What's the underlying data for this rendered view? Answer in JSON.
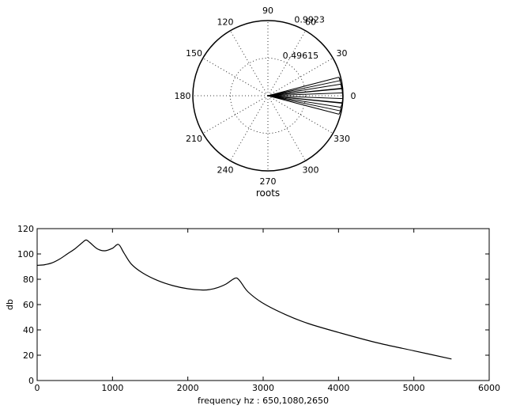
{
  "chart_data": [
    {
      "type": "polar",
      "title": "",
      "xlabel": "roots",
      "rmax": 0.9923,
      "radial_tick_labels": [
        "0.49615",
        "0.9923"
      ],
      "radial_tick_values": [
        0.49615,
        0.9923
      ],
      "angle_tick_labels": [
        "0",
        "30",
        "60",
        "90",
        "120",
        "150",
        "180",
        "210",
        "240",
        "270",
        "300",
        "330"
      ],
      "angle_tick_values": [
        0,
        30,
        60,
        90,
        120,
        150,
        180,
        210,
        240,
        270,
        300,
        330
      ],
      "grid": true,
      "series": [
        {
          "theta_deg": [
            11.8,
            14.6,
            5.4,
            9.0,
            2.2,
            5.8,
            -2.2,
            -5.8,
            -5.4,
            -9.0,
            -11.8,
            -14.6
          ],
          "r": [
            0.98,
            0.97,
            0.99,
            0.975,
            0.99,
            0.985,
            0.99,
            0.985,
            0.99,
            0.975,
            0.98,
            0.97
          ]
        }
      ]
    },
    {
      "type": "line",
      "title": "",
      "xlabel": "frequency hz : 650,1080,2650",
      "ylabel": "db",
      "xlim": [
        0,
        6000
      ],
      "ylim": [
        0,
        120
      ],
      "x_ticks": [
        0,
        1000,
        2000,
        3000,
        4000,
        5000,
        6000
      ],
      "y_ticks": [
        0,
        20,
        40,
        60,
        80,
        100,
        120
      ],
      "grid": false,
      "series": [
        {
          "x": [
            0,
            100,
            200,
            300,
            400,
            500,
            600,
            650,
            700,
            800,
            900,
            1000,
            1080,
            1150,
            1250,
            1400,
            1600,
            1800,
            2000,
            2200,
            2300,
            2400,
            2500,
            2600,
            2650,
            2700,
            2800,
            3000,
            3300,
            3600,
            4000,
            4500,
            5000,
            5500
          ],
          "y": [
            91,
            91.5,
            93,
            96,
            100,
            104,
            109,
            111,
            109,
            104,
            102.5,
            104.5,
            107.5,
            101,
            92,
            85,
            79,
            75,
            72.5,
            71.5,
            72,
            73.5,
            76,
            80,
            81,
            78,
            70,
            61,
            52,
            45,
            38,
            30,
            23.5,
            17
          ]
        }
      ]
    }
  ]
}
